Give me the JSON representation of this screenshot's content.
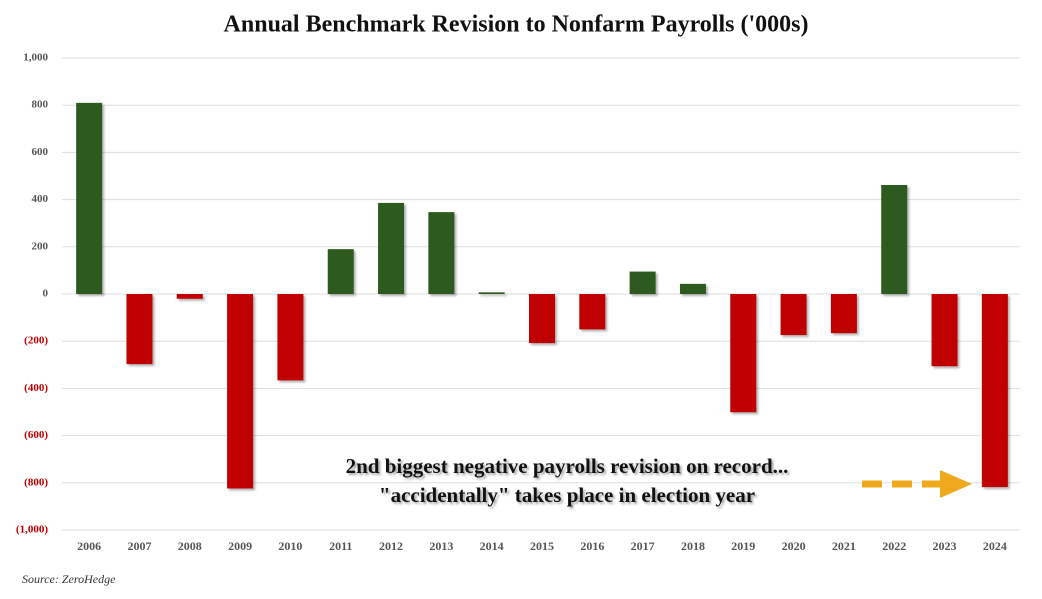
{
  "chart_data": {
    "type": "bar",
    "title": "Annual Benchmark Revision to Nonfarm Payrolls ('000s)",
    "categories": [
      "2006",
      "2007",
      "2008",
      "2009",
      "2010",
      "2011",
      "2012",
      "2013",
      "2014",
      "2015",
      "2016",
      "2017",
      "2018",
      "2019",
      "2020",
      "2021",
      "2022",
      "2023",
      "2024"
    ],
    "values": [
      810,
      -297,
      -20,
      -824,
      -366,
      190,
      386,
      347,
      7,
      -208,
      -150,
      95,
      43,
      -501,
      -174,
      -166,
      462,
      -306,
      -818
    ],
    "positive_color": "#2d5a1f",
    "negative_color": "#c00000",
    "ylim": [
      -1000,
      1000
    ],
    "yticks": [
      {
        "value": 1000,
        "label": "1,000"
      },
      800,
      600,
      400,
      200,
      0,
      {
        "value": -200,
        "label": "(200)"
      },
      {
        "value": -400,
        "label": "(400)"
      },
      {
        "value": -600,
        "label": "(600)"
      },
      {
        "value": -800,
        "label": "(800)"
      },
      {
        "value": -1000,
        "label": "(1,000)"
      }
    ],
    "grid": true,
    "annotation": [
      "2nd  biggest negative payrolls revision on record...",
      "\"accidentally\" takes place in election year"
    ],
    "source": "Source: ZeroHedge"
  }
}
